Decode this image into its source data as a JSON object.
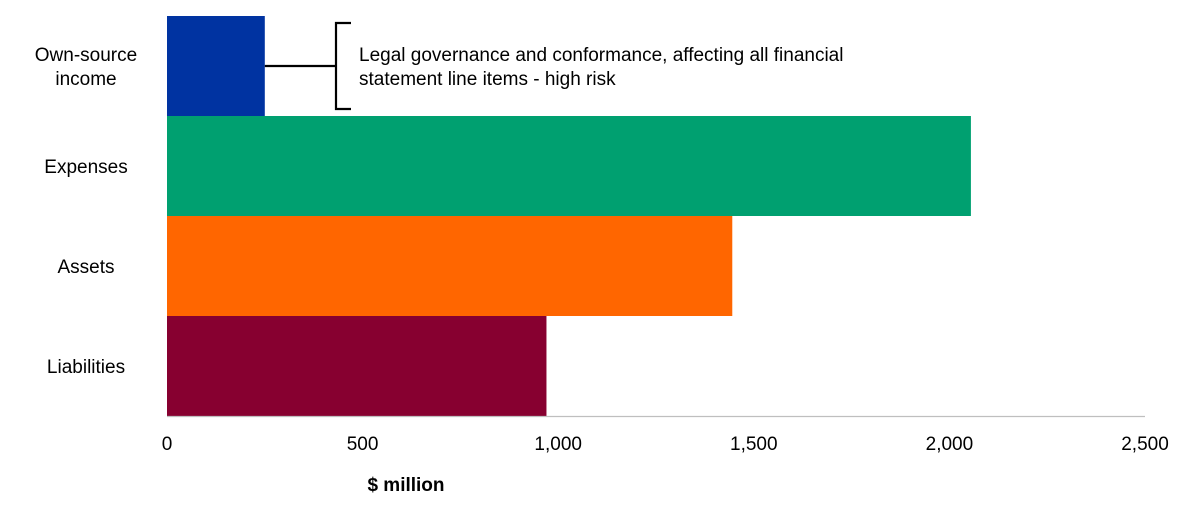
{
  "chart_data": {
    "type": "bar",
    "orientation": "horizontal",
    "categories": [
      [
        "Own-source",
        "income"
      ],
      [
        "Expenses"
      ],
      [
        "Assets"
      ],
      [
        "Liabilities"
      ]
    ],
    "values": [
      250,
      2055,
      1445,
      970
    ],
    "colors": [
      "#0033a1",
      "#00a070",
      "#ff6600",
      "#870030"
    ],
    "xlabel": "$ million",
    "xlim": [
      0,
      2500
    ],
    "xticks": [
      0,
      500,
      1000,
      1500,
      2000,
      2500
    ],
    "xtick_labels": [
      "0",
      "500",
      "1,000",
      "1,500",
      "2,000",
      "2,500"
    ],
    "grid": false,
    "annotations": [
      {
        "category_index": 0,
        "lines": [
          "Legal governance and conformance, affecting all financial",
          "statement line items - high risk"
        ]
      }
    ]
  }
}
